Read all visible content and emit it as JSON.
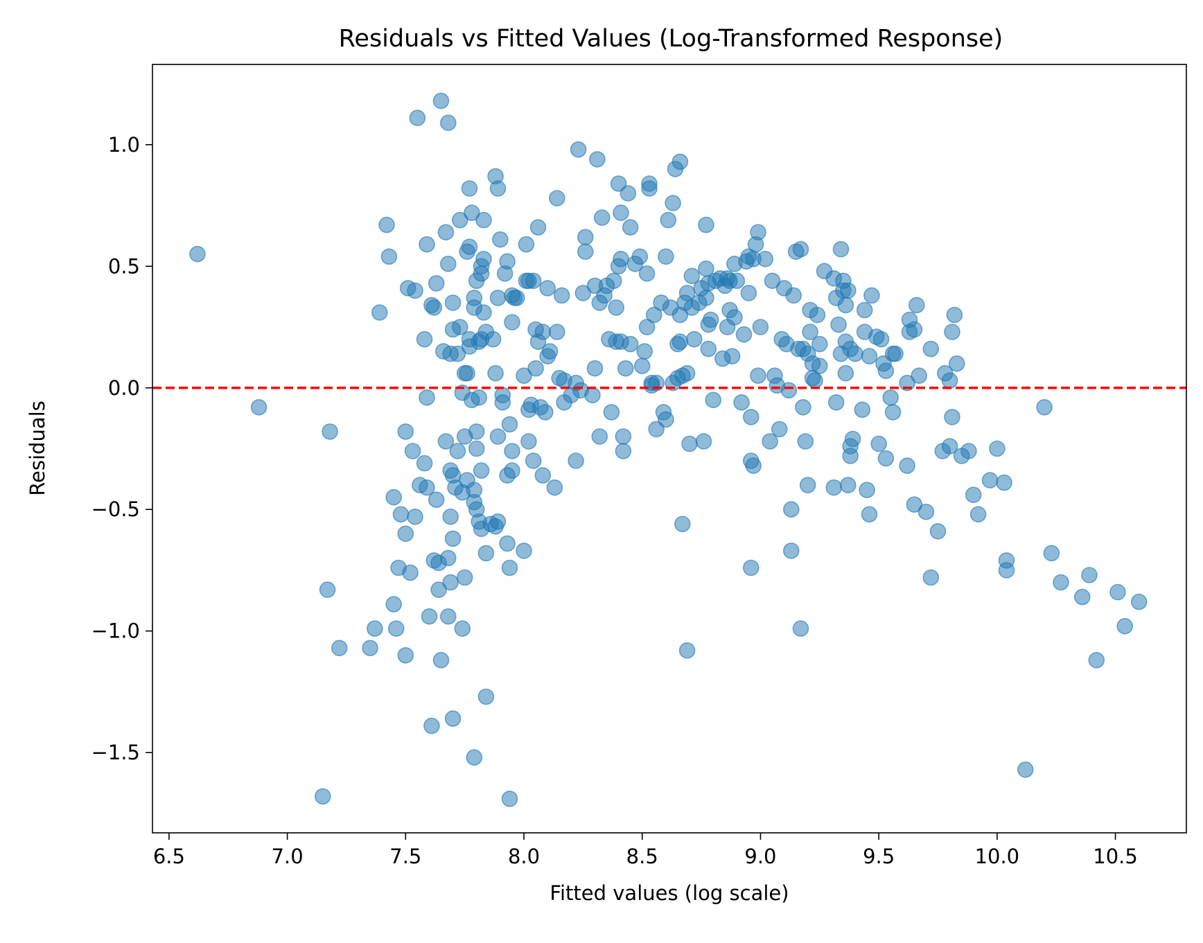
{
  "chart_data": {
    "type": "scatter",
    "title": "Residuals vs Fitted Values (Log-Transformed Response)",
    "xlabel": "Fitted values (log scale)",
    "ylabel": "Residuals",
    "xlim": [
      6.43,
      10.8
    ],
    "ylim": [
      -1.83,
      1.33
    ],
    "xticks": [
      6.5,
      7.0,
      7.5,
      8.0,
      8.5,
      9.0,
      9.5,
      10.0,
      10.5
    ],
    "xtick_labels": [
      "6.5",
      "7.0",
      "7.5",
      "8.0",
      "8.5",
      "9.0",
      "9.5",
      "10.0",
      "10.5"
    ],
    "yticks": [
      1.0,
      0.5,
      0.0,
      -0.5,
      -1.0,
      -1.5
    ],
    "ytick_labels": [
      "1.0",
      "0.5",
      "0.0",
      "−0.5",
      "−1.0",
      "−1.5"
    ],
    "grid": false,
    "point_color": "#1f77b4",
    "reference_line": {
      "y": 0.0,
      "color": "#ff0000",
      "style": "dashed"
    },
    "points": [
      [
        6.62,
        0.55
      ],
      [
        6.88,
        -0.08
      ],
      [
        7.15,
        -1.68
      ],
      [
        7.17,
        -0.83
      ],
      [
        7.18,
        -0.18
      ],
      [
        7.22,
        -1.07
      ],
      [
        7.35,
        -1.07
      ],
      [
        7.37,
        -0.99
      ],
      [
        7.39,
        0.31
      ],
      [
        7.42,
        0.67
      ],
      [
        7.43,
        0.54
      ],
      [
        7.45,
        -0.45
      ],
      [
        7.45,
        -0.89
      ],
      [
        7.46,
        -0.99
      ],
      [
        7.47,
        -0.74
      ],
      [
        7.48,
        -0.52
      ],
      [
        7.5,
        -0.6
      ],
      [
        7.5,
        -0.18
      ],
      [
        7.5,
        -1.1
      ],
      [
        7.51,
        0.41
      ],
      [
        7.52,
        -0.76
      ],
      [
        7.53,
        -0.26
      ],
      [
        7.54,
        0.4
      ],
      [
        7.54,
        -0.53
      ],
      [
        7.55,
        1.11
      ],
      [
        7.56,
        -0.4
      ],
      [
        7.58,
        -0.31
      ],
      [
        7.58,
        0.2
      ],
      [
        7.59,
        -0.41
      ],
      [
        7.59,
        -0.04
      ],
      [
        7.59,
        0.59
      ],
      [
        7.6,
        -0.94
      ],
      [
        7.61,
        0.34
      ],
      [
        7.61,
        -1.39
      ],
      [
        7.62,
        0.33
      ],
      [
        7.62,
        -0.71
      ],
      [
        7.63,
        0.43
      ],
      [
        7.63,
        -0.46
      ],
      [
        7.64,
        -0.72
      ],
      [
        7.64,
        -0.83
      ],
      [
        7.65,
        -1.12
      ],
      [
        7.65,
        1.18
      ],
      [
        7.66,
        0.15
      ],
      [
        7.67,
        -0.22
      ],
      [
        7.67,
        0.64
      ],
      [
        7.68,
        -0.94
      ],
      [
        7.68,
        -0.7
      ],
      [
        7.68,
        0.51
      ],
      [
        7.68,
        1.09
      ],
      [
        7.69,
        -0.8
      ],
      [
        7.69,
        -0.34
      ],
      [
        7.69,
        -0.53
      ],
      [
        7.69,
        0.14
      ],
      [
        7.7,
        -1.36
      ],
      [
        7.7,
        0.24
      ],
      [
        7.7,
        0.35
      ],
      [
        7.7,
        -0.36
      ],
      [
        7.7,
        -0.62
      ],
      [
        7.71,
        -0.41
      ],
      [
        7.72,
        -0.26
      ],
      [
        7.72,
        0.14
      ],
      [
        7.73,
        0.69
      ],
      [
        7.73,
        0.25
      ],
      [
        7.74,
        -0.99
      ],
      [
        7.74,
        -0.43
      ],
      [
        7.74,
        -0.02
      ],
      [
        7.75,
        0.06
      ],
      [
        7.75,
        -0.78
      ],
      [
        7.75,
        -0.2
      ],
      [
        7.76,
        -0.38
      ],
      [
        7.76,
        0.56
      ],
      [
        7.76,
        0.06
      ],
      [
        7.77,
        0.58
      ],
      [
        7.77,
        0.82
      ],
      [
        7.77,
        0.17
      ],
      [
        7.77,
        0.2
      ],
      [
        7.78,
        0.72
      ],
      [
        7.78,
        -0.05
      ],
      [
        7.79,
        0.37
      ],
      [
        7.79,
        0.33
      ],
      [
        7.79,
        -0.42
      ],
      [
        7.79,
        -0.47
      ],
      [
        7.79,
        -1.52
      ],
      [
        7.8,
        -0.5
      ],
      [
        7.8,
        0.44
      ],
      [
        7.8,
        -0.18
      ],
      [
        7.8,
        -0.25
      ],
      [
        7.81,
        -0.55
      ],
      [
        7.81,
        0.19
      ],
      [
        7.81,
        -0.04
      ],
      [
        7.82,
        -0.34
      ],
      [
        7.82,
        0.5
      ],
      [
        7.82,
        0.47
      ],
      [
        7.82,
        0.2
      ],
      [
        7.82,
        -0.58
      ],
      [
        7.83,
        0.69
      ],
      [
        7.83,
        0.31
      ],
      [
        7.83,
        0.53
      ],
      [
        7.84,
        0.23
      ],
      [
        7.84,
        -1.27
      ],
      [
        7.84,
        -0.68
      ],
      [
        7.86,
        -0.56
      ],
      [
        7.87,
        0.2
      ],
      [
        7.88,
        -0.57
      ],
      [
        7.88,
        0.87
      ],
      [
        7.88,
        0.06
      ],
      [
        7.89,
        0.37
      ],
      [
        7.89,
        -0.2
      ],
      [
        7.89,
        0.82
      ],
      [
        7.89,
        -0.55
      ],
      [
        7.9,
        0.61
      ],
      [
        7.91,
        -0.03
      ],
      [
        7.91,
        -0.06
      ],
      [
        7.92,
        0.47
      ],
      [
        7.93,
        -0.36
      ],
      [
        7.93,
        -0.64
      ],
      [
        7.93,
        0.52
      ],
      [
        7.94,
        -1.69
      ],
      [
        7.94,
        -0.15
      ],
      [
        7.94,
        -0.74
      ],
      [
        7.95,
        0.27
      ],
      [
        7.95,
        -0.34
      ],
      [
        7.95,
        -0.26
      ],
      [
        7.95,
        0.38
      ],
      [
        7.96,
        0.37
      ],
      [
        7.97,
        0.37
      ],
      [
        8.0,
        -0.67
      ],
      [
        8.0,
        0.05
      ],
      [
        8.01,
        0.44
      ],
      [
        8.01,
        0.59
      ],
      [
        8.02,
        -0.22
      ],
      [
        8.02,
        0.44
      ],
      [
        8.02,
        -0.09
      ],
      [
        8.03,
        -0.07
      ],
      [
        8.04,
        0.44
      ],
      [
        8.04,
        -0.3
      ],
      [
        8.05,
        0.08
      ],
      [
        8.05,
        0.24
      ],
      [
        8.06,
        0.19
      ],
      [
        8.06,
        0.66
      ],
      [
        8.07,
        -0.08
      ],
      [
        8.08,
        0.23
      ],
      [
        8.08,
        -0.36
      ],
      [
        8.09,
        -0.1
      ],
      [
        8.1,
        0.41
      ],
      [
        8.1,
        0.13
      ],
      [
        8.11,
        0.15
      ],
      [
        8.13,
        -0.41
      ],
      [
        8.14,
        0.78
      ],
      [
        8.14,
        0.23
      ],
      [
        8.15,
        0.04
      ],
      [
        8.16,
        0.38
      ],
      [
        8.17,
        0.03
      ],
      [
        8.17,
        -0.06
      ],
      [
        8.2,
        -0.03
      ],
      [
        8.22,
        0.02
      ],
      [
        8.22,
        -0.3
      ],
      [
        8.23,
        0.98
      ],
      [
        8.24,
        -0.01
      ],
      [
        8.25,
        0.39
      ],
      [
        8.26,
        0.56
      ],
      [
        8.26,
        0.62
      ],
      [
        8.29,
        -0.03
      ],
      [
        8.3,
        0.08
      ],
      [
        8.3,
        0.42
      ],
      [
        8.31,
        0.94
      ],
      [
        8.32,
        0.35
      ],
      [
        8.32,
        -0.2
      ],
      [
        8.33,
        0.7
      ],
      [
        8.34,
        0.38
      ],
      [
        8.35,
        0.42
      ],
      [
        8.36,
        0.2
      ],
      [
        8.37,
        -0.1
      ],
      [
        8.38,
        0.44
      ],
      [
        8.39,
        0.19
      ],
      [
        8.39,
        0.33
      ],
      [
        8.4,
        0.5
      ],
      [
        8.4,
        0.84
      ],
      [
        8.41,
        0.53
      ],
      [
        8.41,
        0.19
      ],
      [
        8.41,
        0.72
      ],
      [
        8.42,
        -0.26
      ],
      [
        8.42,
        -0.2
      ],
      [
        8.43,
        0.08
      ],
      [
        8.44,
        0.8
      ],
      [
        8.45,
        0.18
      ],
      [
        8.45,
        0.66
      ],
      [
        8.47,
        0.51
      ],
      [
        8.49,
        0.54
      ],
      [
        8.5,
        0.09
      ],
      [
        8.51,
        0.15
      ],
      [
        8.52,
        0.47
      ],
      [
        8.52,
        0.25
      ],
      [
        8.53,
        0.82
      ],
      [
        8.53,
        0.84
      ],
      [
        8.54,
        0.02
      ],
      [
        8.54,
        0.01
      ],
      [
        8.55,
        0.3
      ],
      [
        8.56,
        0.02
      ],
      [
        8.56,
        -0.17
      ],
      [
        8.58,
        0.35
      ],
      [
        8.59,
        -0.1
      ],
      [
        8.6,
        -0.13
      ],
      [
        8.6,
        0.54
      ],
      [
        8.61,
        0.69
      ],
      [
        8.62,
        0.33
      ],
      [
        8.63,
        0.76
      ],
      [
        8.63,
        0.02
      ],
      [
        8.64,
        0.9
      ],
      [
        8.65,
        0.18
      ],
      [
        8.65,
        0.04
      ],
      [
        8.66,
        0.93
      ],
      [
        8.66,
        0.3
      ],
      [
        8.66,
        0.19
      ],
      [
        8.67,
        -0.56
      ],
      [
        8.67,
        0.05
      ],
      [
        8.68,
        0.35
      ],
      [
        8.69,
        0.39
      ],
      [
        8.69,
        0.06
      ],
      [
        8.69,
        -1.08
      ],
      [
        8.7,
        -0.23
      ],
      [
        8.71,
        0.46
      ],
      [
        8.71,
        0.33
      ],
      [
        8.72,
        0.2
      ],
      [
        8.74,
        0.35
      ],
      [
        8.75,
        0.41
      ],
      [
        8.76,
        -0.22
      ],
      [
        8.77,
        0.67
      ],
      [
        8.77,
        0.49
      ],
      [
        8.77,
        0.37
      ],
      [
        8.78,
        0.26
      ],
      [
        8.78,
        0.16
      ],
      [
        8.78,
        0.43
      ],
      [
        8.79,
        0.28
      ],
      [
        8.8,
        -0.05
      ],
      [
        8.81,
        0.44
      ],
      [
        8.83,
        0.45
      ],
      [
        8.84,
        0.12
      ],
      [
        8.85,
        0.42
      ],
      [
        8.86,
        0.45
      ],
      [
        8.86,
        0.25
      ],
      [
        8.87,
        0.32
      ],
      [
        8.87,
        0.44
      ],
      [
        8.88,
        0.13
      ],
      [
        8.89,
        0.29
      ],
      [
        8.89,
        0.51
      ],
      [
        8.9,
        0.44
      ],
      [
        8.92,
        -0.06
      ],
      [
        8.93,
        0.22
      ],
      [
        8.94,
        0.52
      ],
      [
        8.95,
        0.54
      ],
      [
        8.95,
        0.39
      ],
      [
        8.96,
        -0.12
      ],
      [
        8.96,
        -0.3
      ],
      [
        8.96,
        -0.74
      ],
      [
        8.97,
        -0.32
      ],
      [
        8.97,
        0.53
      ],
      [
        8.98,
        0.59
      ],
      [
        8.99,
        0.64
      ],
      [
        8.99,
        0.05
      ],
      [
        9.0,
        0.25
      ],
      [
        9.02,
        0.53
      ],
      [
        9.04,
        -0.22
      ],
      [
        9.05,
        0.44
      ],
      [
        9.06,
        0.05
      ],
      [
        9.07,
        0.01
      ],
      [
        9.08,
        -0.17
      ],
      [
        9.09,
        0.2
      ],
      [
        9.1,
        0.41
      ],
      [
        9.11,
        0.18
      ],
      [
        9.12,
        -0.01
      ],
      [
        9.13,
        -0.67
      ],
      [
        9.13,
        -0.5
      ],
      [
        9.14,
        0.38
      ],
      [
        9.15,
        0.56
      ],
      [
        9.16,
        0.16
      ],
      [
        9.17,
        0.57
      ],
      [
        9.17,
        -0.99
      ],
      [
        9.18,
        -0.08
      ],
      [
        9.18,
        0.16
      ],
      [
        9.19,
        -0.22
      ],
      [
        9.2,
        0.14
      ],
      [
        9.2,
        -0.4
      ],
      [
        9.21,
        0.32
      ],
      [
        9.21,
        0.23
      ],
      [
        9.22,
        0.1
      ],
      [
        9.22,
        0.04
      ],
      [
        9.23,
        0.03
      ],
      [
        9.24,
        0.3
      ],
      [
        9.25,
        0.18
      ],
      [
        9.25,
        0.09
      ],
      [
        9.27,
        0.48
      ],
      [
        9.31,
        -0.41
      ],
      [
        9.31,
        0.45
      ],
      [
        9.32,
        -0.06
      ],
      [
        9.32,
        0.37
      ],
      [
        9.33,
        0.26
      ],
      [
        9.34,
        0.57
      ],
      [
        9.34,
        0.14
      ],
      [
        9.35,
        0.4
      ],
      [
        9.35,
        0.44
      ],
      [
        9.36,
        0.06
      ],
      [
        9.36,
        0.34
      ],
      [
        9.36,
        0.19
      ],
      [
        9.37,
        0.4
      ],
      [
        9.37,
        -0.4
      ],
      [
        9.38,
        -0.24
      ],
      [
        9.38,
        -0.28
      ],
      [
        9.38,
        0.16
      ],
      [
        9.39,
        -0.21
      ],
      [
        9.4,
        0.14
      ],
      [
        9.43,
        -0.09
      ],
      [
        9.44,
        0.32
      ],
      [
        9.44,
        0.23
      ],
      [
        9.45,
        -0.42
      ],
      [
        9.46,
        0.13
      ],
      [
        9.46,
        -0.52
      ],
      [
        9.47,
        0.38
      ],
      [
        9.49,
        0.21
      ],
      [
        9.5,
        -0.23
      ],
      [
        9.51,
        0.2
      ],
      [
        9.52,
        0.1
      ],
      [
        9.53,
        -0.29
      ],
      [
        9.53,
        0.07
      ],
      [
        9.55,
        -0.04
      ],
      [
        9.56,
        0.14
      ],
      [
        9.56,
        -0.1
      ],
      [
        9.57,
        0.14
      ],
      [
        9.62,
        -0.32
      ],
      [
        9.62,
        0.02
      ],
      [
        9.63,
        0.28
      ],
      [
        9.63,
        0.23
      ],
      [
        9.65,
        -0.48
      ],
      [
        9.65,
        0.24
      ],
      [
        9.66,
        0.34
      ],
      [
        9.67,
        0.05
      ],
      [
        9.7,
        -0.51
      ],
      [
        9.72,
        0.16
      ],
      [
        9.72,
        -0.78
      ],
      [
        9.75,
        -0.59
      ],
      [
        9.77,
        -0.26
      ],
      [
        9.78,
        0.06
      ],
      [
        9.8,
        0.03
      ],
      [
        9.8,
        -0.24
      ],
      [
        9.81,
        -0.12
      ],
      [
        9.81,
        0.23
      ],
      [
        9.82,
        0.3
      ],
      [
        9.83,
        0.1
      ],
      [
        9.85,
        -0.28
      ],
      [
        9.88,
        -0.26
      ],
      [
        9.9,
        -0.44
      ],
      [
        9.92,
        -0.52
      ],
      [
        9.97,
        -0.38
      ],
      [
        10.0,
        -0.25
      ],
      [
        10.03,
        -0.39
      ],
      [
        10.04,
        -0.71
      ],
      [
        10.04,
        -0.75
      ],
      [
        10.12,
        -1.57
      ],
      [
        10.2,
        -0.08
      ],
      [
        10.23,
        -0.68
      ],
      [
        10.27,
        -0.8
      ],
      [
        10.36,
        -0.86
      ],
      [
        10.39,
        -0.77
      ],
      [
        10.42,
        -1.12
      ],
      [
        10.51,
        -0.84
      ],
      [
        10.54,
        -0.98
      ],
      [
        10.6,
        -0.88
      ]
    ]
  }
}
